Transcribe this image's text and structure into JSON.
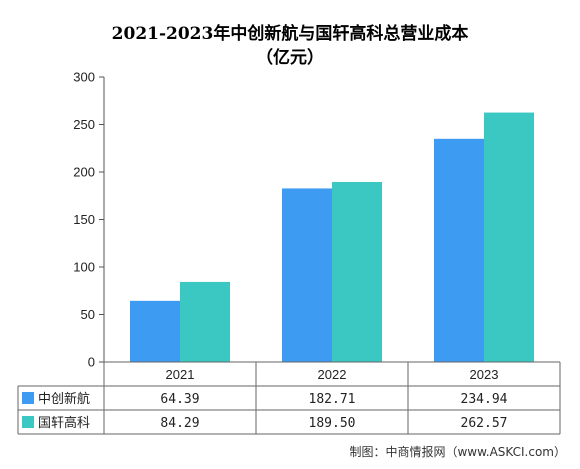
{
  "chart_data": {
    "type": "bar",
    "title": "2021-2023年中创新航与国轩高科总营业成本",
    "title_unit": "（亿元）",
    "categories": [
      "2021",
      "2022",
      "2023"
    ],
    "series": [
      {
        "name": "中创新航",
        "values": [
          64.39,
          182.71,
          234.94
        ],
        "color": "#3e9bf2"
      },
      {
        "name": "国轩高科",
        "values": [
          84.29,
          189.5,
          262.57
        ],
        "color": "#3cc8c2"
      }
    ],
    "ylim": [
      0,
      300
    ],
    "yticks": [
      0,
      50,
      100,
      150,
      200,
      250,
      300
    ],
    "data_table": [
      [
        "64.39",
        "182.71",
        "234.94"
      ],
      [
        "84.29",
        "189.50",
        "262.57"
      ]
    ],
    "legend": "data-table-left",
    "grid": false
  },
  "source": "制图：中商情报网（www.ASKCI.com）"
}
